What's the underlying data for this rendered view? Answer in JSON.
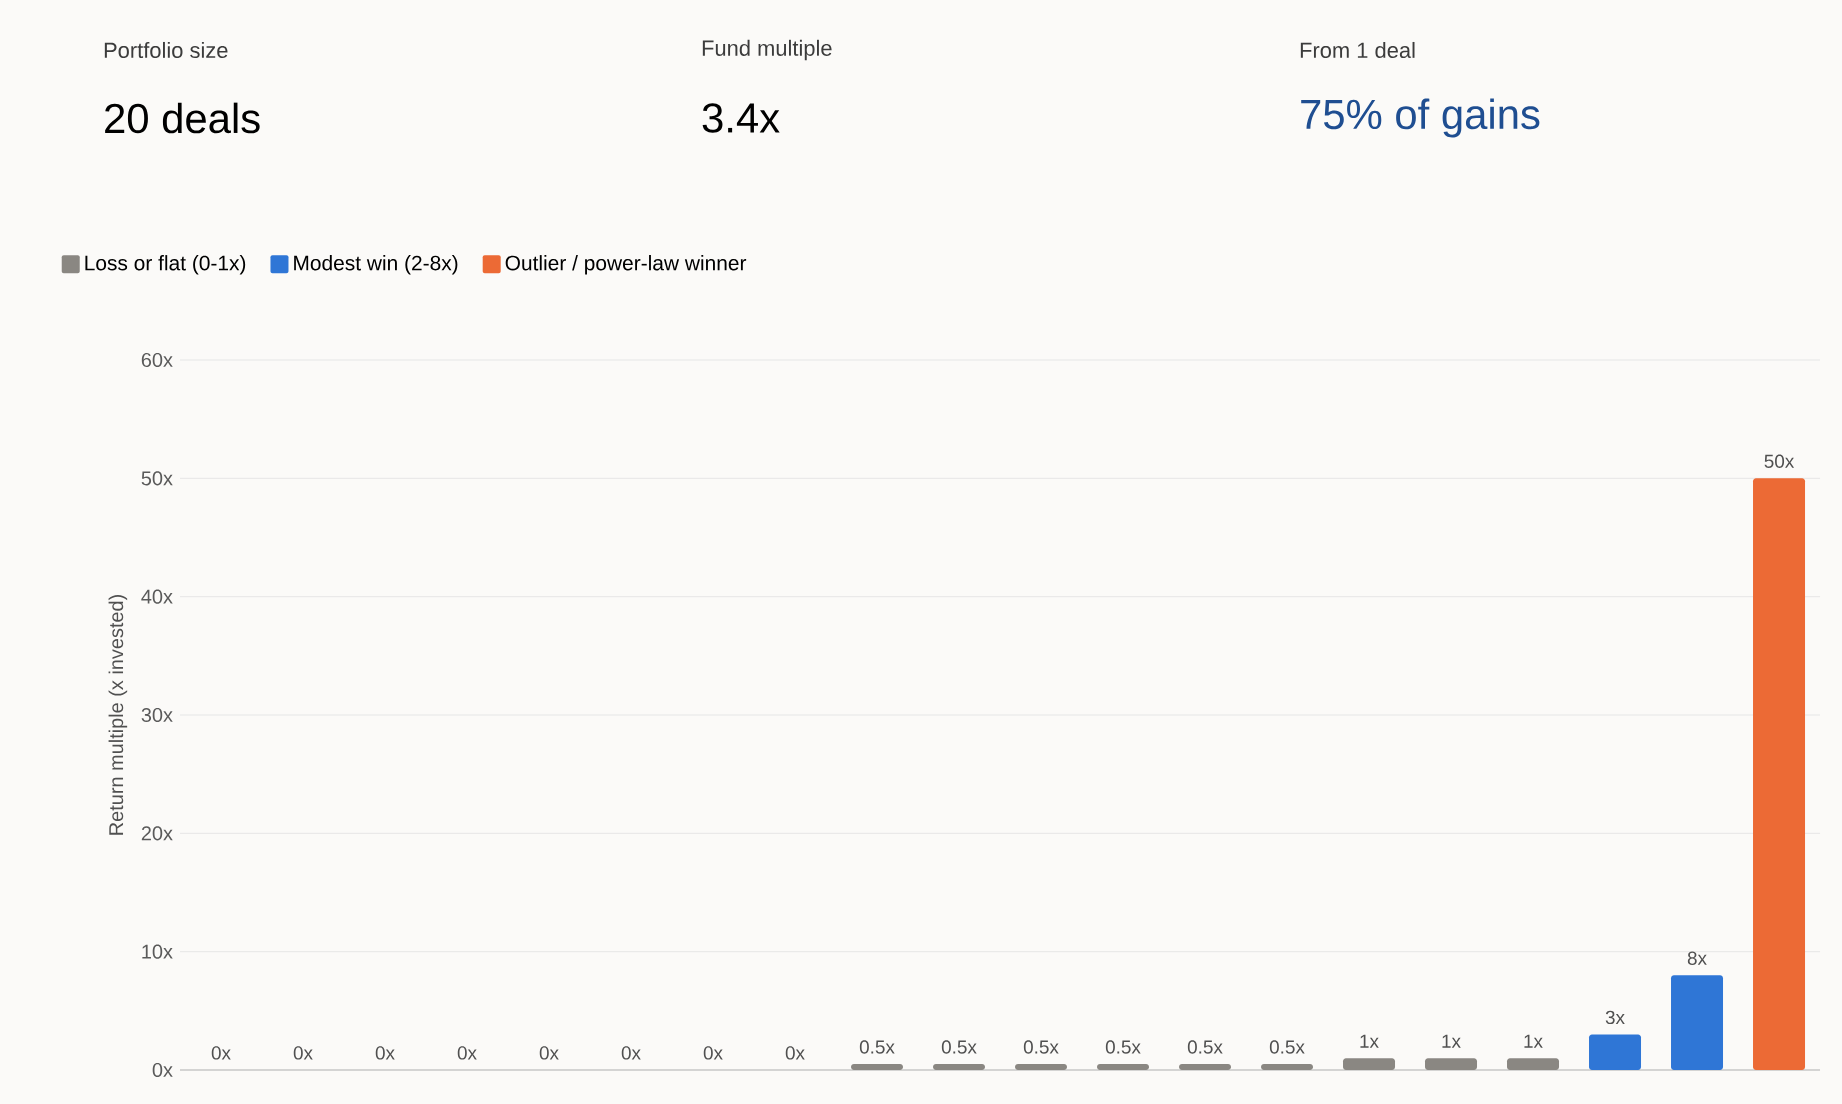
{
  "chart_data": {
    "type": "bar",
    "annotations": [
      "Portfolio size",
      "20 deals",
      "Fund multiple",
      "3.4x",
      "From 1 deal",
      "75% of gains"
    ],
    "ylabel": "Return multiple (x invested)",
    "categories": [
      null,
      null,
      null,
      null,
      null,
      null,
      null,
      null,
      null,
      null,
      null,
      null,
      null,
      null,
      null,
      null,
      null,
      null,
      null,
      null
    ],
    "series": [
      {
        "name": "Loss or flat (0-1x)",
        "color": "#8a8782",
        "values": [
          0,
          0,
          0,
          0,
          0,
          0,
          0,
          0,
          0.5,
          0.5,
          0.5,
          0.5,
          0.5,
          0.5,
          1,
          1,
          1,
          null,
          null,
          null
        ],
        "value_labels": [
          "0x",
          "0x",
          "0x",
          "0x",
          "0x",
          "0x",
          "0x",
          "0x",
          "0.5x",
          "0.5x",
          "0.5x",
          "0.5x",
          "0.5x",
          "0.5x",
          "1x",
          "1x",
          "1x",
          null,
          null,
          null
        ]
      },
      {
        "name": "Modest win (2-8x)",
        "color": "#2f76d6",
        "values": [
          null,
          null,
          null,
          null,
          null,
          null,
          null,
          null,
          null,
          null,
          null,
          null,
          null,
          null,
          null,
          null,
          null,
          3,
          8,
          null
        ],
        "value_labels": [
          null,
          null,
          null,
          null,
          null,
          null,
          null,
          null,
          null,
          null,
          null,
          null,
          null,
          null,
          null,
          null,
          null,
          "3x",
          "8x",
          null
        ]
      },
      {
        "name": "Outlier / power-law winner",
        "color": "#ec6a35",
        "values": [
          null,
          null,
          null,
          null,
          null,
          null,
          null,
          null,
          null,
          null,
          null,
          null,
          null,
          null,
          null,
          null,
          null,
          null,
          null,
          50
        ],
        "value_labels": [
          null,
          null,
          null,
          null,
          null,
          null,
          null,
          null,
          null,
          null,
          null,
          null,
          null,
          null,
          null,
          null,
          null,
          null,
          null,
          "50x"
        ]
      }
    ],
    "ylim": [
      0,
      60
    ],
    "yticks": [
      {
        "value": 0,
        "label": "0x"
      },
      {
        "value": 10,
        "label": "10x"
      },
      {
        "value": 20,
        "label": "20x"
      },
      {
        "value": 30,
        "label": "30x"
      },
      {
        "value": 40,
        "label": "40x"
      },
      {
        "value": 50,
        "label": "50x"
      },
      {
        "value": 60,
        "label": "60x"
      }
    ],
    "grid": "y",
    "legend": "top left"
  }
}
